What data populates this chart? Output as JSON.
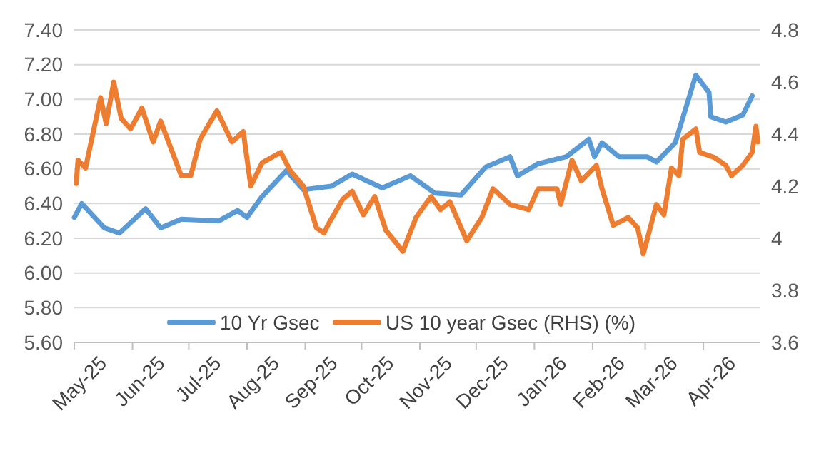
{
  "chart_data": {
    "type": "line",
    "x": [
      "2025-05-01",
      "2025-05-05",
      "2025-05-17",
      "2025-05-25",
      "2025-06-08",
      "2025-06-16",
      "2025-06-27",
      "2025-07-17",
      "2025-07-27",
      "2025-08-01",
      "2025-08-09",
      "2025-08-22",
      "2025-08-31",
      "2025-09-15",
      "2025-09-26",
      "2025-10-12",
      "2025-10-27",
      "2025-11-09",
      "2025-11-23",
      "2025-12-06",
      "2025-12-19",
      "2025-12-23",
      "2026-01-03",
      "2026-01-18",
      "2026-01-30",
      "2026-02-02",
      "2026-02-06",
      "2026-02-15",
      "2026-03-02",
      "2026-03-07",
      "2026-03-17",
      "2026-03-28",
      "2026-04-04",
      "2026-04-05",
      "2026-04-13",
      "2026-04-22",
      "2026-04-27"
    ],
    "series": [
      {
        "name": "10 Yr Gsec",
        "color": "#5b9bd5",
        "values": [
          6.32,
          6.4,
          6.26,
          6.23,
          6.37,
          6.26,
          6.31,
          6.3,
          6.36,
          6.32,
          6.44,
          6.59,
          6.48,
          6.5,
          6.57,
          6.49,
          6.56,
          6.46,
          6.45,
          6.61,
          6.67,
          6.56,
          6.63,
          6.67,
          6.77,
          6.67,
          6.75,
          6.67,
          6.67,
          6.64,
          6.75,
          7.14,
          7.04,
          6.9,
          6.87,
          6.91,
          7.02
        ]
      },
      {
        "name": "US 10 year Gsec (RHS) (%)",
        "color": "#ed7d31",
        "axis": "y2",
        "x": [
          "2025-05-02",
          "2025-05-03",
          "2025-05-07",
          "2025-05-15",
          "2025-05-18",
          "2025-05-22",
          "2025-05-26",
          "2025-05-31",
          "2025-06-06",
          "2025-06-12",
          "2025-06-16",
          "2025-06-27",
          "2025-07-02",
          "2025-07-07",
          "2025-07-16",
          "2025-07-24",
          "2025-07-30",
          "2025-08-03",
          "2025-08-09",
          "2025-08-19",
          "2025-08-24",
          "2025-08-31",
          "2025-09-07",
          "2025-09-11",
          "2025-09-13",
          "2025-09-21",
          "2025-09-26",
          "2025-10-02",
          "2025-10-08",
          "2025-10-14",
          "2025-10-23",
          "2025-10-30",
          "2025-11-07",
          "2025-11-12",
          "2025-11-17",
          "2025-11-26",
          "2025-12-04",
          "2025-12-10",
          "2025-12-19",
          "2025-12-29",
          "2026-01-03",
          "2026-01-13",
          "2026-01-15",
          "2026-01-21",
          "2026-01-26",
          "2026-02-03",
          "2026-02-06",
          "2026-02-12",
          "2026-02-20",
          "2026-02-25",
          "2026-02-28",
          "2026-03-07",
          "2026-03-11",
          "2026-03-15",
          "2026-03-19",
          "2026-03-21",
          "2026-03-28",
          "2026-03-30",
          "2026-04-07",
          "2026-04-13",
          "2026-04-16",
          "2026-04-22",
          "2026-04-27",
          "2026-04-29",
          "2026-04-30"
        ],
        "values": [
          4.21,
          4.3,
          4.27,
          4.54,
          4.44,
          4.6,
          4.46,
          4.42,
          4.5,
          4.37,
          4.45,
          4.24,
          4.24,
          4.38,
          4.49,
          4.37,
          4.41,
          4.2,
          4.29,
          4.33,
          4.26,
          4.2,
          4.04,
          4.02,
          4.05,
          4.15,
          4.18,
          4.09,
          4.16,
          4.03,
          3.95,
          4.08,
          4.16,
          4.11,
          4.14,
          3.99,
          4.08,
          4.19,
          4.13,
          4.11,
          4.19,
          4.19,
          4.13,
          4.3,
          4.22,
          4.28,
          4.19,
          4.05,
          4.08,
          4.04,
          3.94,
          4.13,
          4.09,
          4.27,
          4.24,
          4.38,
          4.42,
          4.33,
          4.31,
          4.28,
          4.24,
          4.28,
          4.33,
          4.43,
          4.37
        ]
      }
    ],
    "xlim": [
      "2025-05-01",
      "2026-05-01"
    ],
    "xticks": [
      {
        "value": "2025-05-01",
        "label": "May-25"
      },
      {
        "value": "2025-06-01",
        "label": "Jun-25"
      },
      {
        "value": "2025-07-01",
        "label": "Jul-25"
      },
      {
        "value": "2025-08-01",
        "label": "Aug-25"
      },
      {
        "value": "2025-09-01",
        "label": "Sep-25"
      },
      {
        "value": "2025-10-01",
        "label": "Oct-25"
      },
      {
        "value": "2025-11-01",
        "label": "Nov-25"
      },
      {
        "value": "2025-12-01",
        "label": "Dec-25"
      },
      {
        "value": "2026-01-01",
        "label": "Jan-26"
      },
      {
        "value": "2026-02-01",
        "label": "Feb-26"
      },
      {
        "value": "2026-03-01",
        "label": "Mar-26"
      },
      {
        "value": "2026-04-01",
        "label": "Apr-26"
      }
    ],
    "ylim": [
      5.6,
      7.4
    ],
    "yticks": [
      {
        "value": 5.6,
        "label": "5.60"
      },
      {
        "value": 5.8,
        "label": "5.80"
      },
      {
        "value": 6.0,
        "label": "6.00"
      },
      {
        "value": 6.2,
        "label": "6.20"
      },
      {
        "value": 6.4,
        "label": "6.40"
      },
      {
        "value": 6.6,
        "label": "6.60"
      },
      {
        "value": 6.8,
        "label": "6.80"
      },
      {
        "value": 7.0,
        "label": "7.00"
      },
      {
        "value": 7.2,
        "label": "7.20"
      },
      {
        "value": 7.4,
        "label": "7.40"
      }
    ],
    "y2lim": [
      3.6,
      4.8
    ],
    "y2ticks": [
      3.6,
      3.8,
      4,
      4.2,
      4.4,
      4.6,
      4.8
    ],
    "grid": "y",
    "legend": "bottom",
    "line_style": "solid",
    "marker": "none"
  }
}
